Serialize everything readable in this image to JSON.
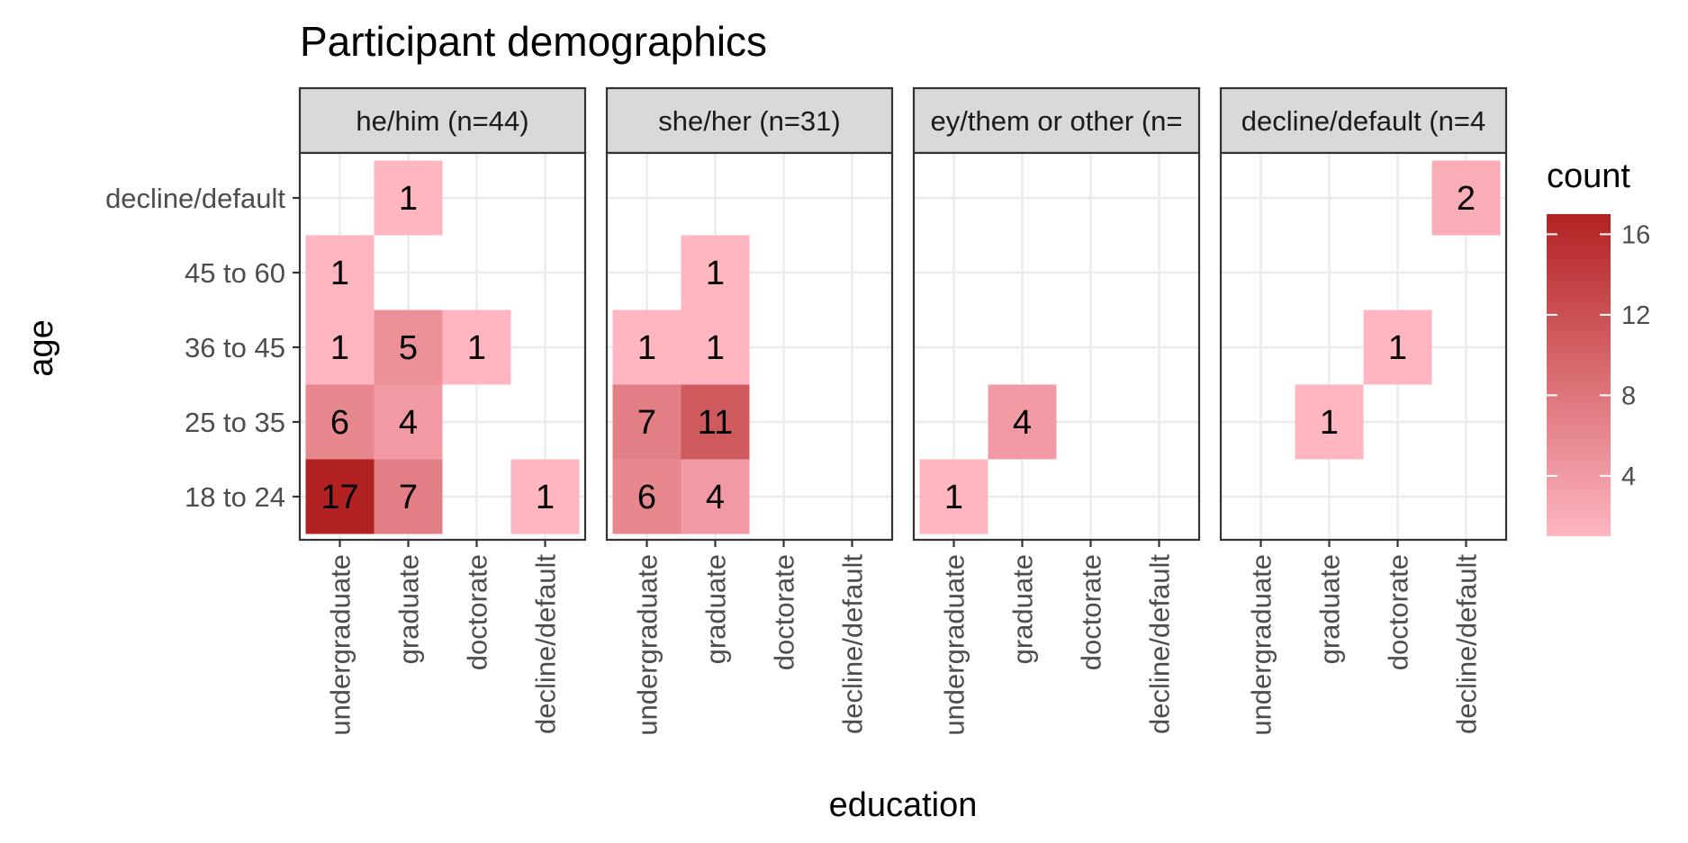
{
  "chart_data": {
    "type": "heatmap",
    "title": "Participant demographics",
    "xlabel": "education",
    "ylabel": "age",
    "x_categories": [
      "undergraduate",
      "graduate",
      "doctorate",
      "decline/default"
    ],
    "y_categories": [
      "18 to 24",
      "25 to 35",
      "36 to 45",
      "45 to 60",
      "decline/default"
    ],
    "facets": [
      {
        "label": "he/him (n=44)",
        "cells": [
          {
            "x": "undergraduate",
            "y": "18 to 24",
            "value": 17
          },
          {
            "x": "graduate",
            "y": "18 to 24",
            "value": 7
          },
          {
            "x": "decline/default",
            "y": "18 to 24",
            "value": 1
          },
          {
            "x": "undergraduate",
            "y": "25 to 35",
            "value": 6
          },
          {
            "x": "graduate",
            "y": "25 to 35",
            "value": 4
          },
          {
            "x": "undergraduate",
            "y": "36 to 45",
            "value": 1
          },
          {
            "x": "graduate",
            "y": "36 to 45",
            "value": 5
          },
          {
            "x": "doctorate",
            "y": "36 to 45",
            "value": 1
          },
          {
            "x": "undergraduate",
            "y": "45 to 60",
            "value": 1
          },
          {
            "x": "graduate",
            "y": "decline/default",
            "value": 1
          }
        ]
      },
      {
        "label": "she/her (n=31)",
        "cells": [
          {
            "x": "undergraduate",
            "y": "18 to 24",
            "value": 6
          },
          {
            "x": "graduate",
            "y": "18 to 24",
            "value": 4
          },
          {
            "x": "undergraduate",
            "y": "25 to 35",
            "value": 7
          },
          {
            "x": "graduate",
            "y": "25 to 35",
            "value": 11
          },
          {
            "x": "undergraduate",
            "y": "36 to 45",
            "value": 1
          },
          {
            "x": "graduate",
            "y": "36 to 45",
            "value": 1
          },
          {
            "x": "graduate",
            "y": "45 to 60",
            "value": 1
          }
        ]
      },
      {
        "label": "ey/them or other (n=",
        "cells": [
          {
            "x": "undergraduate",
            "y": "18 to 24",
            "value": 1
          },
          {
            "x": "graduate",
            "y": "25 to 35",
            "value": 4
          }
        ]
      },
      {
        "label": "decline/default (n=4",
        "cells": [
          {
            "x": "graduate",
            "y": "25 to 35",
            "value": 1
          },
          {
            "x": "doctorate",
            "y": "36 to 45",
            "value": 1
          },
          {
            "x": "decline/default",
            "y": "decline/default",
            "value": 2
          }
        ]
      }
    ],
    "legend": {
      "title": "count",
      "ticks": [
        4,
        8,
        12,
        16
      ],
      "range": [
        1,
        17
      ],
      "low_color": "#FFB6C1",
      "high_color": "#B22222",
      "placement": "right"
    },
    "grid": true
  }
}
